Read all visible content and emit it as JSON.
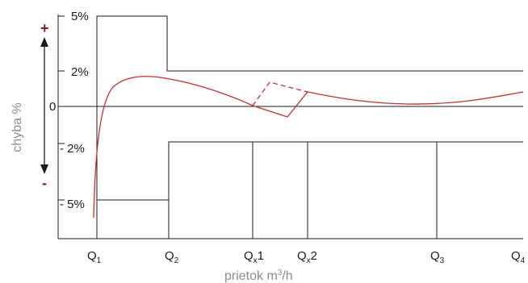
{
  "chart_data": {
    "type": "line",
    "title": "",
    "xlabel": "prietok m³/h",
    "xlabel_main": "prietok m",
    "xlabel_sup": "3",
    "xlabel_tail": "/h",
    "ylabel": "chyba %",
    "y_plus_sign": "+",
    "y_minus_sign": "-",
    "y_tick_labels": [
      "5%",
      "2%",
      "0",
      "- 2%",
      "- 5%"
    ],
    "x_tick_labels": [
      {
        "base": "Q",
        "sub": "1",
        "tail": ""
      },
      {
        "base": "Q",
        "sub": "2",
        "tail": ""
      },
      {
        "base": "Q",
        "sub": "x",
        "tail": "1"
      },
      {
        "base": "Q",
        "sub": "x",
        "tail": "2"
      },
      {
        "base": "Q",
        "sub": "3",
        "tail": ""
      },
      {
        "base": "Q",
        "sub": "4",
        "tail": ""
      }
    ],
    "line_color": "#d42a2a",
    "frame_color": "#1a1a1a"
  }
}
